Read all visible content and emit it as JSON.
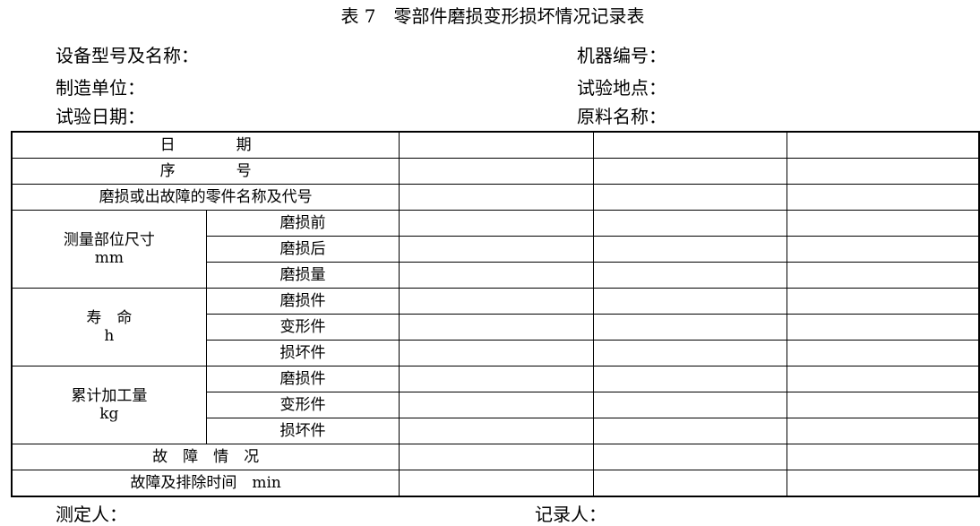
{
  "title": "表 7　零部件磨损变形损坏情况记录表",
  "header": {
    "left": [
      "设备型号及名称：",
      "制造单位：",
      "试验日期："
    ],
    "right": [
      "机器编号：",
      "试验地点：",
      "原料名称："
    ]
  },
  "table": {
    "date": "日　　　　期",
    "seq": "序　　　　号",
    "part_name": "磨损或出故障的零件名称及代号",
    "measure": {
      "label": "测量部位尺寸",
      "unit": "mm",
      "rows": [
        "磨损前",
        "磨损后",
        "磨损量"
      ]
    },
    "life": {
      "label": "寿　命",
      "unit": "h",
      "rows": [
        "磨损件",
        "变形件",
        "损坏件"
      ]
    },
    "cumulative": {
      "label": "累计加工量",
      "unit": "kg",
      "rows": [
        "磨损件",
        "变形件",
        "损坏件"
      ]
    },
    "fault": "故　障　情　况",
    "fault_time": "故障及排除时间　min"
  },
  "footer": {
    "measurer": "测定人：",
    "recorder": "记录人："
  }
}
